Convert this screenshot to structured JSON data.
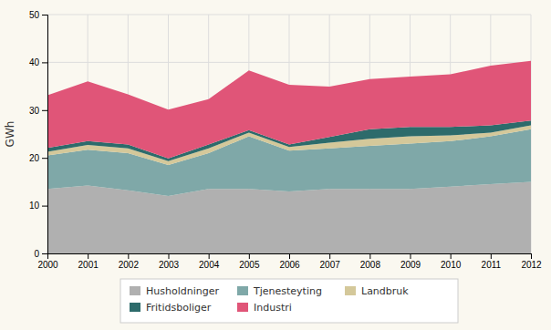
{
  "chart_data": {
    "type": "area",
    "stacked": true,
    "x": [
      2000,
      2001,
      2002,
      2003,
      2004,
      2005,
      2006,
      2007,
      2008,
      2009,
      2010,
      2011,
      2012
    ],
    "xlim": [
      2000,
      2012
    ],
    "xticks": [
      2000,
      2001,
      2002,
      2003,
      2004,
      2005,
      2006,
      2007,
      2008,
      2009,
      2010,
      2011,
      2012
    ],
    "ylabel": "GWh",
    "ylim": [
      0,
      50
    ],
    "yticks": [
      0,
      10,
      20,
      30,
      40,
      50
    ],
    "grid": true,
    "legend": "bottom",
    "series": [
      {
        "name": "Husholdninger",
        "color": "#b0b0b0",
        "values": [
          13.5,
          14.2,
          13.2,
          12.0,
          13.5,
          13.5,
          13.0,
          13.5,
          13.5,
          13.5,
          14.0,
          14.5,
          15.0
        ]
      },
      {
        "name": "Tjenesteyting",
        "color": "#7fa8a8",
        "values": [
          7.0,
          7.5,
          7.8,
          6.5,
          7.5,
          11.0,
          8.5,
          8.5,
          9.0,
          9.5,
          9.5,
          10.0,
          11.0
        ]
      },
      {
        "name": "Landbruk",
        "color": "#d4c89a",
        "values": [
          0.8,
          1.0,
          1.0,
          0.8,
          1.0,
          0.8,
          0.8,
          1.2,
          1.5,
          1.5,
          1.2,
          0.8,
          0.8
        ]
      },
      {
        "name": "Fritidsboliger",
        "color": "#2d6b6b",
        "values": [
          0.8,
          0.8,
          0.8,
          0.6,
          0.8,
          0.5,
          0.5,
          1.2,
          2.0,
          2.0,
          1.8,
          1.5,
          1.0
        ]
      },
      {
        "name": "Industri",
        "color": "#e05578",
        "values": [
          11.0,
          12.5,
          10.5,
          10.2,
          9.5,
          12.5,
          12.5,
          10.5,
          10.5,
          10.5,
          11.0,
          12.5,
          12.5
        ]
      }
    ]
  }
}
